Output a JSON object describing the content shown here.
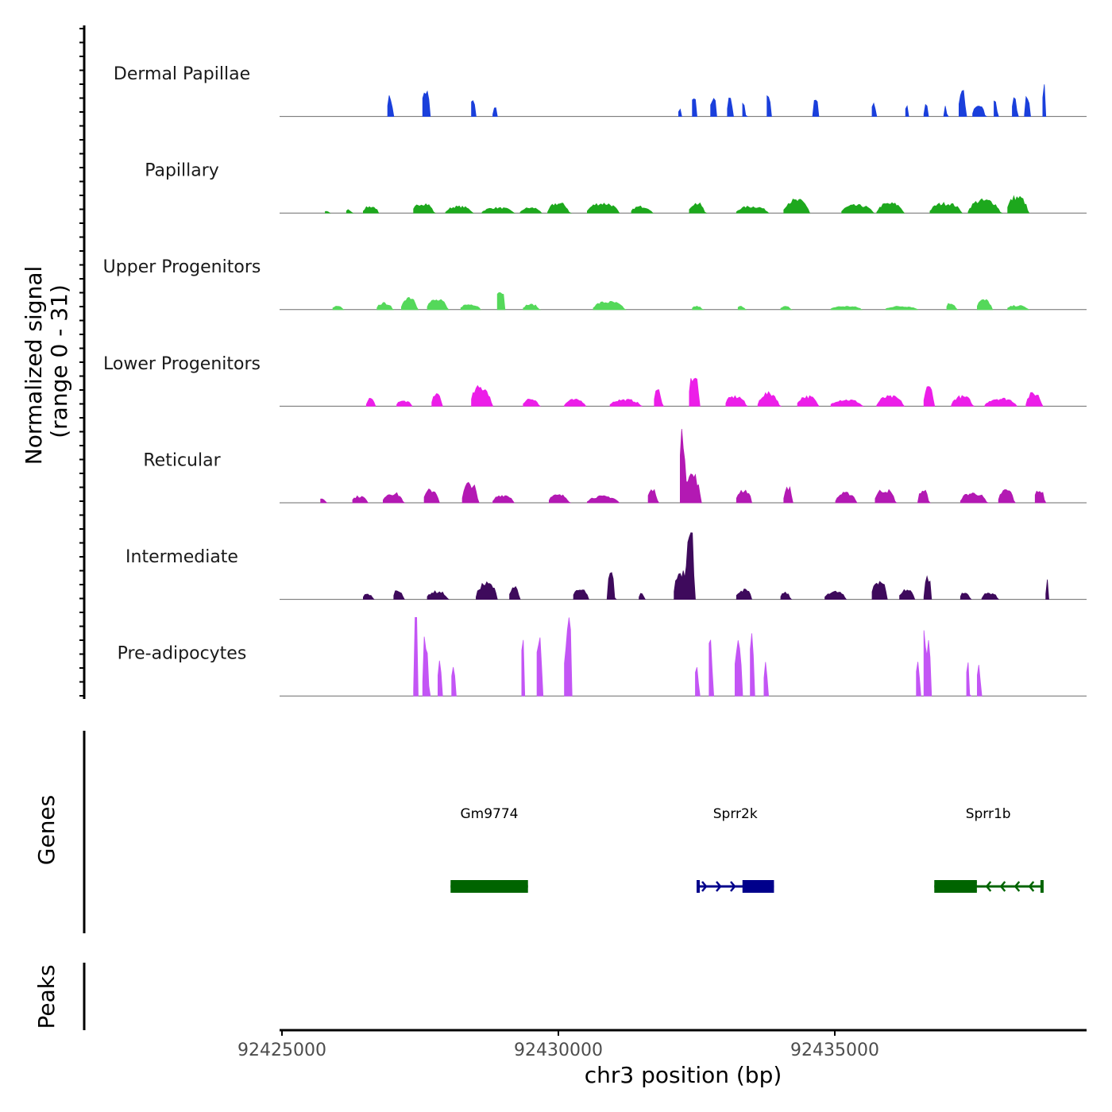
{
  "chart_data": {
    "type": "area",
    "region": {
      "chromosome": "chr3",
      "start": 92425000,
      "end": 92439600
    },
    "y_title_line1": "Normalized signal",
    "y_title_line2": "(range 0 - 31)",
    "y_range": [
      0,
      31
    ],
    "x_title": "chr3 position (bp)",
    "x_ticks": [
      92425000,
      92430000,
      92435000
    ],
    "x_tick_labels": [
      "92425000",
      "92430000",
      "92435000"
    ],
    "genes_title": "Genes",
    "peaks_title": "Peaks",
    "tracks": [
      {
        "name": "Dermal Papillae",
        "color": "#1a3fdb",
        "peaks": [
          [
            92426950,
            0.06,
            0.3
          ],
          [
            92427600,
            0.08,
            0.4
          ],
          [
            92428450,
            0.05,
            0.25
          ],
          [
            92428850,
            0.04,
            0.15
          ],
          [
            92432200,
            0.03,
            0.15
          ],
          [
            92432450,
            0.05,
            0.3
          ],
          [
            92432800,
            0.06,
            0.3
          ],
          [
            92433100,
            0.05,
            0.3
          ],
          [
            92433350,
            0.04,
            0.2
          ],
          [
            92433800,
            0.05,
            0.35
          ],
          [
            92434650,
            0.05,
            0.3
          ],
          [
            92435700,
            0.04,
            0.2
          ],
          [
            92436300,
            0.03,
            0.2
          ],
          [
            92436650,
            0.04,
            0.2
          ],
          [
            92437000,
            0.03,
            0.15
          ],
          [
            92437300,
            0.07,
            0.4
          ],
          [
            92437600,
            0.12,
            0.18
          ],
          [
            92437900,
            0.04,
            0.25
          ],
          [
            92438250,
            0.05,
            0.3
          ],
          [
            92438480,
            0.05,
            0.3
          ],
          [
            92438780,
            0.02,
            0.55
          ]
        ]
      },
      {
        "name": "Papillary",
        "color": "#1da81d",
        "peaks": [
          [
            92425800,
            0.05,
            0.03
          ],
          [
            92426200,
            0.06,
            0.05
          ],
          [
            92426600,
            0.15,
            0.1
          ],
          [
            92427550,
            0.2,
            0.15
          ],
          [
            92428200,
            0.25,
            0.1
          ],
          [
            92428900,
            0.3,
            0.08
          ],
          [
            92429500,
            0.2,
            0.08
          ],
          [
            92430000,
            0.2,
            0.15
          ],
          [
            92430800,
            0.3,
            0.15
          ],
          [
            92431500,
            0.2,
            0.1
          ],
          [
            92432500,
            0.15,
            0.15
          ],
          [
            92433500,
            0.3,
            0.1
          ],
          [
            92434300,
            0.25,
            0.2
          ],
          [
            92435400,
            0.3,
            0.12
          ],
          [
            92436000,
            0.25,
            0.15
          ],
          [
            92437000,
            0.3,
            0.15
          ],
          [
            92437700,
            0.3,
            0.2
          ],
          [
            92438300,
            0.2,
            0.25
          ]
        ]
      },
      {
        "name": "Upper Progenitors",
        "color": "#54d85a",
        "peaks": [
          [
            92426000,
            0.1,
            0.05
          ],
          [
            92426850,
            0.15,
            0.1
          ],
          [
            92427300,
            0.15,
            0.2
          ],
          [
            92427800,
            0.2,
            0.15
          ],
          [
            92428400,
            0.2,
            0.08
          ],
          [
            92428950,
            0.08,
            0.35
          ],
          [
            92429500,
            0.15,
            0.08
          ],
          [
            92430900,
            0.3,
            0.12
          ],
          [
            92432500,
            0.1,
            0.05
          ],
          [
            92433300,
            0.08,
            0.05
          ],
          [
            92434100,
            0.1,
            0.05
          ],
          [
            92435200,
            0.3,
            0.05
          ],
          [
            92436200,
            0.3,
            0.05
          ],
          [
            92437100,
            0.1,
            0.1
          ],
          [
            92437700,
            0.15,
            0.15
          ],
          [
            92438300,
            0.2,
            0.06
          ]
        ]
      },
      {
        "name": "Lower Progenitors",
        "color": "#ec1ee8",
        "peaks": [
          [
            92426600,
            0.08,
            0.12
          ],
          [
            92427200,
            0.15,
            0.08
          ],
          [
            92427800,
            0.1,
            0.2
          ],
          [
            92428600,
            0.2,
            0.3
          ],
          [
            92429500,
            0.15,
            0.12
          ],
          [
            92430300,
            0.2,
            0.1
          ],
          [
            92431200,
            0.3,
            0.1
          ],
          [
            92431800,
            0.08,
            0.25
          ],
          [
            92432450,
            0.1,
            0.5
          ],
          [
            92433200,
            0.2,
            0.15
          ],
          [
            92433800,
            0.2,
            0.2
          ],
          [
            92434500,
            0.2,
            0.15
          ],
          [
            92435200,
            0.3,
            0.1
          ],
          [
            92436000,
            0.25,
            0.15
          ],
          [
            92436700,
            0.1,
            0.3
          ],
          [
            92437300,
            0.2,
            0.15
          ],
          [
            92438000,
            0.3,
            0.12
          ],
          [
            92438600,
            0.15,
            0.2
          ]
        ]
      },
      {
        "name": "Reticular",
        "color": "#b319b3",
        "peaks": [
          [
            92425700,
            0.1,
            0.07
          ],
          [
            92426400,
            0.15,
            0.1
          ],
          [
            92427000,
            0.2,
            0.15
          ],
          [
            92427700,
            0.15,
            0.2
          ],
          [
            92428400,
            0.15,
            0.3
          ],
          [
            92429000,
            0.2,
            0.12
          ],
          [
            92430000,
            0.2,
            0.12
          ],
          [
            92430800,
            0.3,
            0.1
          ],
          [
            92431700,
            0.1,
            0.2
          ],
          [
            92432250,
            0.07,
            1.05
          ],
          [
            92432400,
            0.18,
            0.45
          ],
          [
            92433350,
            0.15,
            0.2
          ],
          [
            92434150,
            0.08,
            0.25
          ],
          [
            92435200,
            0.2,
            0.15
          ],
          [
            92435900,
            0.2,
            0.2
          ],
          [
            92436600,
            0.1,
            0.2
          ],
          [
            92437500,
            0.25,
            0.15
          ],
          [
            92438100,
            0.15,
            0.2
          ],
          [
            92438700,
            0.1,
            0.2
          ]
        ]
      },
      {
        "name": "Intermediate",
        "color": "#3e0a5c",
        "peaks": [
          [
            92426550,
            0.1,
            0.08
          ],
          [
            92427100,
            0.1,
            0.15
          ],
          [
            92427800,
            0.2,
            0.12
          ],
          [
            92428700,
            0.2,
            0.25
          ],
          [
            92429200,
            0.1,
            0.2
          ],
          [
            92430400,
            0.15,
            0.15
          ],
          [
            92430950,
            0.07,
            0.4
          ],
          [
            92431500,
            0.05,
            0.1
          ],
          [
            92432380,
            0.08,
            1.3
          ],
          [
            92432250,
            0.18,
            0.45
          ],
          [
            92433350,
            0.15,
            0.15
          ],
          [
            92434100,
            0.1,
            0.1
          ],
          [
            92435000,
            0.2,
            0.12
          ],
          [
            92435800,
            0.15,
            0.3
          ],
          [
            92436300,
            0.15,
            0.15
          ],
          [
            92436680,
            0.07,
            0.35
          ],
          [
            92437350,
            0.1,
            0.1
          ],
          [
            92437800,
            0.15,
            0.1
          ],
          [
            92438840,
            0.02,
            0.38
          ]
        ]
      },
      {
        "name": "Pre-adipocytes",
        "color": "#c355f5",
        "peaks": [
          [
            92427420,
            0.04,
            1.7
          ],
          [
            92427600,
            0.06,
            0.9
          ],
          [
            92427850,
            0.04,
            0.5
          ],
          [
            92428100,
            0.04,
            0.5
          ],
          [
            92429350,
            0.04,
            0.9
          ],
          [
            92429650,
            0.06,
            0.9
          ],
          [
            92430150,
            0.05,
            1.0
          ],
          [
            92430200,
            0.01,
            2.0
          ],
          [
            92432500,
            0.04,
            0.5
          ],
          [
            92432750,
            0.04,
            0.9
          ],
          [
            92433250,
            0.07,
            0.9
          ],
          [
            92433500,
            0.05,
            0.9
          ],
          [
            92433750,
            0.04,
            0.5
          ],
          [
            92436620,
            0.03,
            1.4
          ],
          [
            92436700,
            0.05,
            0.9
          ],
          [
            92436500,
            0.04,
            0.5
          ],
          [
            92437400,
            0.04,
            0.5
          ],
          [
            92437600,
            0.04,
            0.5
          ]
        ]
      }
    ],
    "genes": [
      {
        "name": "Gm9774",
        "start": 92428050,
        "end": 92429450,
        "strand": "+",
        "color": "#006400",
        "exons": [
          [
            92428050,
            92429450
          ]
        ]
      },
      {
        "name": "Sprr2k",
        "start": 92432500,
        "end": 92433900,
        "strand": "+",
        "color": "#00008b",
        "exons": [
          [
            92432500,
            92432520
          ],
          [
            92433330,
            92433900
          ]
        ]
      },
      {
        "name": "Sprr1b",
        "start": 92436800,
        "end": 92438750,
        "strand": "-",
        "color": "#006400",
        "exons": [
          [
            92436800,
            92437570
          ],
          [
            92438720,
            92438750
          ]
        ]
      }
    ]
  }
}
